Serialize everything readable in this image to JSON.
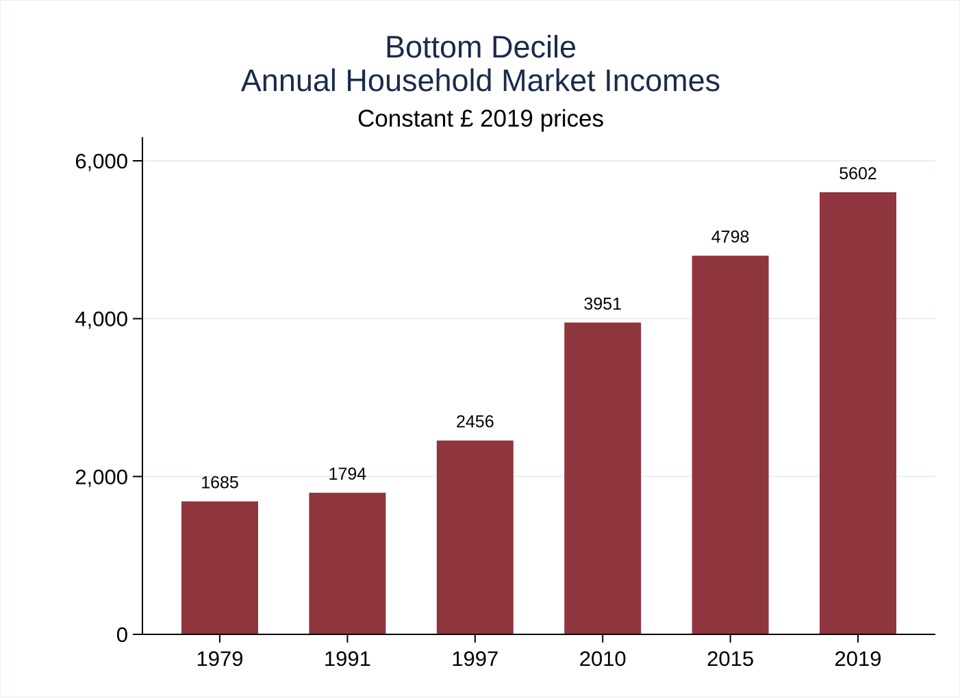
{
  "chart_data": {
    "type": "bar",
    "title": [
      "Bottom Decile",
      "Annual Household Market Incomes"
    ],
    "subtitle": "Constant £ 2019 prices",
    "categories": [
      "1979",
      "1991",
      "1997",
      "2010",
      "2015",
      "2019"
    ],
    "values": [
      1685,
      1794,
      2456,
      3951,
      4798,
      5602
    ],
    "data_labels": [
      "1685",
      "1794",
      "2456",
      "3951",
      "4798",
      "5602"
    ],
    "yticks": [
      0,
      2000,
      4000,
      6000
    ],
    "ytick_labels": [
      "0",
      "2,000",
      "4,000",
      "6,000"
    ],
    "ylim": [
      0,
      6300
    ],
    "xlabel": "",
    "ylabel": "",
    "grid": true,
    "colors": {
      "bar": "#8f353e",
      "title": "#1a2b4c",
      "grid": "#e8efef",
      "axis": "#000000"
    }
  }
}
